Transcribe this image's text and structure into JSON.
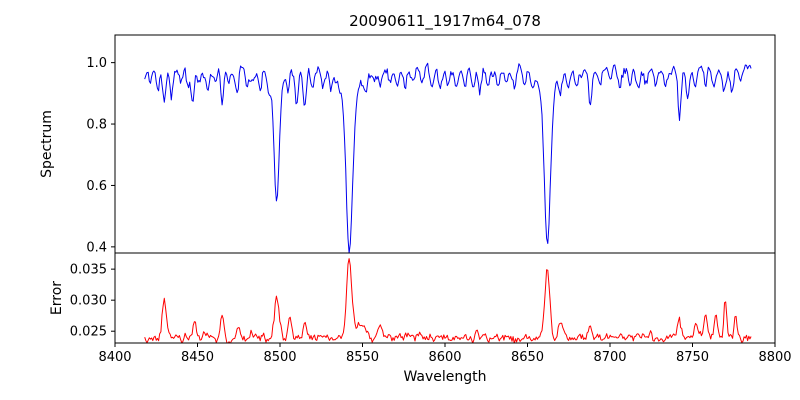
{
  "chart_data": {
    "type": "line",
    "title": "20090611_1917m64_078",
    "xlabel": "Wavelength",
    "xlim": [
      8400,
      8800
    ],
    "xticks": [
      8400,
      8450,
      8500,
      8550,
      8600,
      8650,
      8700,
      8750,
      8800
    ],
    "xticklabels": [
      "8400",
      "8450",
      "8500",
      "8550",
      "8600",
      "8650",
      "8700",
      "8750",
      "8800"
    ],
    "grid": false,
    "legend": "none",
    "seed": 7,
    "notable_features": [
      {
        "line": "absorption",
        "center": 8498,
        "minimum": 0.54
      },
      {
        "line": "absorption",
        "center": 8542,
        "minimum": 0.39
      },
      {
        "line": "absorption",
        "center": 8662,
        "minimum": 0.41
      },
      {
        "line": "error-peak",
        "center": 8542,
        "maximum": 0.037
      },
      {
        "line": "error-peak",
        "center": 8662,
        "maximum": 0.035
      },
      {
        "line": "error-peak",
        "center": 8498,
        "maximum": 0.032
      }
    ],
    "panels": [
      {
        "name": "spectrum",
        "ylabel": "Spectrum",
        "color": "#0000ee",
        "ylim": [
          0.38,
          1.09
        ],
        "yticks": [
          0.4,
          0.6,
          0.8,
          1.0
        ],
        "yticklabels": [
          "0.4",
          "0.6",
          "0.8",
          "1.0"
        ],
        "x_start": 8418,
        "x_end": 8786,
        "x_step": 0.7,
        "continuum": 0.972,
        "noise_smooth": 0.05,
        "noise_white": 0.02,
        "major_lines": [
          {
            "center": 8498.0,
            "depth": 0.37,
            "sigma": 1.5,
            "wing_depth": 0.06,
            "wing_sigma": 4.0
          },
          {
            "center": 8542.1,
            "depth": 0.5,
            "sigma": 2.0,
            "wing_depth": 0.08,
            "wing_sigma": 6.0
          },
          {
            "center": 8662.1,
            "depth": 0.48,
            "sigma": 1.8,
            "wing_depth": 0.08,
            "wing_sigma": 5.0
          }
        ],
        "minor_lines": [
          [
            8421,
            0.04
          ],
          [
            8426,
            0.06
          ],
          [
            8430,
            0.1
          ],
          [
            8434,
            0.07
          ],
          [
            8440,
            0.05
          ],
          [
            8444,
            0.04
          ],
          [
            8447,
            0.09
          ],
          [
            8451,
            0.05
          ],
          [
            8456,
            0.06
          ],
          [
            8461,
            0.04
          ],
          [
            8465,
            0.11
          ],
          [
            8469,
            0.06
          ],
          [
            8474,
            0.08
          ],
          [
            8480,
            0.05
          ],
          [
            8484,
            0.04
          ],
          [
            8488,
            0.07
          ],
          [
            8493,
            0.05
          ],
          [
            8505,
            0.05
          ],
          [
            8510,
            0.11
          ],
          [
            8515,
            0.09
          ],
          [
            8520,
            0.05
          ],
          [
            8526,
            0.06
          ],
          [
            8531,
            0.04
          ],
          [
            8552,
            0.05
          ],
          [
            8557,
            0.04
          ],
          [
            8561,
            0.06
          ],
          [
            8567,
            0.04
          ],
          [
            8571,
            0.05
          ],
          [
            8576,
            0.06
          ],
          [
            8581,
            0.04
          ],
          [
            8586,
            0.05
          ],
          [
            8592,
            0.04
          ],
          [
            8597,
            0.06
          ],
          [
            8602,
            0.04
          ],
          [
            8607,
            0.05
          ],
          [
            8612,
            0.04
          ],
          [
            8617,
            0.05
          ],
          [
            8621,
            0.06
          ],
          [
            8626,
            0.04
          ],
          [
            8632,
            0.05
          ],
          [
            8637,
            0.04
          ],
          [
            8642,
            0.05
          ],
          [
            8648,
            0.06
          ],
          [
            8653,
            0.04
          ],
          [
            8670,
            0.05
          ],
          [
            8675,
            0.06
          ],
          [
            8680,
            0.04
          ],
          [
            8688,
            0.11
          ],
          [
            8694,
            0.06
          ],
          [
            8700,
            0.04
          ],
          [
            8706,
            0.05
          ],
          [
            8712,
            0.04
          ],
          [
            8717,
            0.05
          ],
          [
            8722,
            0.04
          ],
          [
            8728,
            0.05
          ],
          [
            8734,
            0.04
          ],
          [
            8742,
            0.15
          ],
          [
            8747,
            0.07
          ],
          [
            8752,
            0.05
          ],
          [
            8758,
            0.06
          ],
          [
            8763,
            0.05
          ],
          [
            8769,
            0.07
          ],
          [
            8774,
            0.05
          ],
          [
            8779,
            0.04
          ]
        ]
      },
      {
        "name": "error",
        "ylabel": "Error",
        "color": "#ff0000",
        "ylim": [
          0.0231,
          0.0376
        ],
        "yticks": [
          0.025,
          0.03,
          0.035
        ],
        "yticklabels": [
          "0.025",
          "0.030",
          "0.035"
        ],
        "x_start": 8418,
        "x_end": 8786,
        "x_step": 0.7,
        "baseline": 0.024,
        "noise_smooth": 0.002,
        "noise_white": 0.0008,
        "peaks": [
          [
            8430,
            0.0062,
            1.2
          ],
          [
            8448,
            0.0022,
            1.0
          ],
          [
            8465,
            0.0035,
            1.1
          ],
          [
            8475,
            0.002,
            1.0
          ],
          [
            8498,
            0.0075,
            1.3
          ],
          [
            8506,
            0.0032,
            1.0
          ],
          [
            8515,
            0.0028,
            1.0
          ],
          [
            8542,
            0.0128,
            1.6
          ],
          [
            8549,
            0.0025,
            2.5
          ],
          [
            8561,
            0.002,
            1.2
          ],
          [
            8586,
            0.0012,
            1.0
          ],
          [
            8620,
            0.001,
            1.0
          ],
          [
            8662,
            0.0115,
            1.4
          ],
          [
            8670,
            0.002,
            1.5
          ],
          [
            8688,
            0.0022,
            1.0
          ],
          [
            8742,
            0.0028,
            1.2
          ],
          [
            8752,
            0.002,
            1.0
          ],
          [
            8758,
            0.0042,
            1.0
          ],
          [
            8764,
            0.0032,
            1.0
          ],
          [
            8770,
            0.0058,
            0.9
          ],
          [
            8776,
            0.0035,
            0.9
          ]
        ]
      }
    ]
  }
}
